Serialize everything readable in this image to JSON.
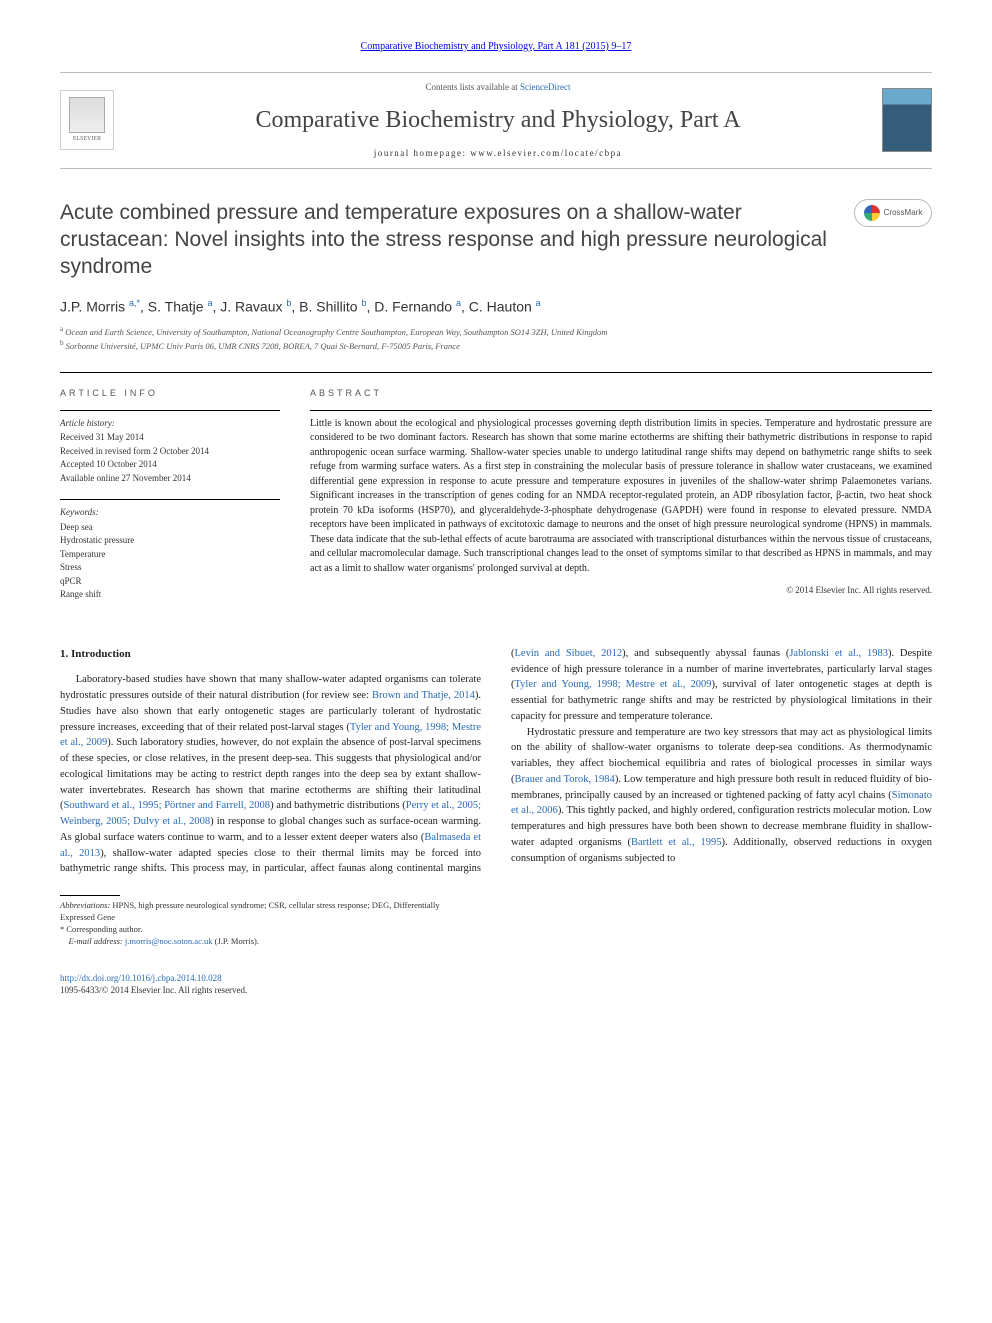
{
  "top_link": {
    "journal": "Comparative Biochemistry and Physiology, Part A",
    "cite": "181 (2015) 9–17"
  },
  "header": {
    "contents_prefix": "Contents lists available at ",
    "contents_link": "ScienceDirect",
    "journal_name": "Comparative Biochemistry and Physiology, Part A",
    "homepage_prefix": "journal homepage: ",
    "homepage_url": "www.elsevier.com/locate/cbpa",
    "publisher": "ELSEVIER"
  },
  "article": {
    "title": "Acute combined pressure and temperature exposures on a shallow-water crustacean: Novel insights into the stress response and high pressure neurological syndrome",
    "crossmark_label": "CrossMark",
    "authors_html": "J.P. Morris <sup>a,*</sup>, S. Thatje <sup>a</sup>, J. Ravaux <sup>b</sup>, B. Shillito <sup>b</sup>, D. Fernando <sup>a</sup>, C. Hauton <sup>a</sup>",
    "affiliations": [
      {
        "sup": "a",
        "text": "Ocean and Earth Science, University of Southampton, National Oceanography Centre Southampton, European Way, Southampton SO14 3ZH, United Kingdom"
      },
      {
        "sup": "b",
        "text": "Sorbonne Université, UPMC Univ Paris 06, UMR CNRS 7208, BOREA, 7 Quai St-Bernard, F-75005 Paris, France"
      }
    ]
  },
  "info": {
    "heading": "article info",
    "history_label": "Article history:",
    "history": [
      "Received 31 May 2014",
      "Received in revised form 2 October 2014",
      "Accepted 10 October 2014",
      "Available online 27 November 2014"
    ],
    "keywords_label": "Keywords:",
    "keywords": [
      "Deep sea",
      "Hydrostatic pressure",
      "Temperature",
      "Stress",
      "qPCR",
      "Range shift"
    ]
  },
  "abstract": {
    "heading": "abstract",
    "text": "Little is known about the ecological and physiological processes governing depth distribution limits in species. Temperature and hydrostatic pressure are considered to be two dominant factors. Research has shown that some marine ectotherms are shifting their bathymetric distributions in response to rapid anthropogenic ocean surface warming. Shallow-water species unable to undergo latitudinal range shifts may depend on bathymetric range shifts to seek refuge from warming surface waters. As a first step in constraining the molecular basis of pressure tolerance in shallow water crustaceans, we examined differential gene expression in response to acute pressure and temperature exposures in juveniles of the shallow-water shrimp Palaemonetes varians. Significant increases in the transcription of genes coding for an NMDA receptor-regulated protein, an ADP ribosylation factor, β-actin, two heat shock protein 70 kDa isoforms (HSP70), and glyceraldehyde-3-phosphate dehydrogenase (GAPDH) were found in response to elevated pressure. NMDA receptors have been implicated in pathways of excitotoxic damage to neurons and the onset of high pressure neurological syndrome (HPNS) in mammals. These data indicate that the sub-lethal effects of acute barotrauma are associated with transcriptional disturbances within the nervous tissue of crustaceans, and cellular macromolecular damage. Such transcriptional changes lead to the onset of symptoms similar to that described as HPNS in mammals, and may act as a limit to shallow water organisms' prolonged survival at depth.",
    "copyright": "© 2014 Elsevier Inc. All rights reserved."
  },
  "body": {
    "section_heading": "1. Introduction",
    "paragraphs_html": [
      "Laboratory-based studies have shown that many shallow-water adapted organisms can tolerate hydrostatic pressures outside of their natural distribution (for review see: <a href='#'>Brown and Thatje, 2014</a>). Studies have also shown that early ontogenetic stages are particularly tolerant of hydrostatic pressure increases, exceeding that of their related post-larval stages (<a href='#'>Tyler and Young, 1998; Mestre et al., 2009</a>). Such laboratory studies, however, do not explain the absence of post-larval specimens of these species, or close relatives, in the present deep-sea. This suggests that physiological and/or ecological limitations may be acting to restrict depth ranges into the deep sea by extant shallow-water invertebrates. Research has shown that marine ectotherms are shifting their latitudinal (<a href='#'>Southward et al., 1995; Pörtner and Farrell, 2008</a>) and bathymetric distributions (<a href='#'>Perry et al., 2005; Weinberg, 2005; Dulvy et al., 2008</a>) in response to global changes such as surface-ocean warming. As global surface waters continue to warm, and to a lesser extent deeper waters also (<a href='#'>Balmaseda et al., 2013</a>), shallow-water adapted species close to their thermal limits may be forced into bathymetric range shifts. This process may, in particular, affect faunas along continental margins (<a href='#'>Levin and Sibuet, 2012</a>), and subsequently abyssal faunas (<a href='#'>Jablonski et al., 1983</a>). Despite evidence of high pressure tolerance in a number of marine invertebrates, particularly larval stages (<a href='#'>Tyler and Young, 1998; Mestre et al., 2009</a>), survival of later ontogenetic stages at depth is essential for bathymetric range shifts and may be restricted by physiological limitations in their capacity for pressure and temperature tolerance.",
      "Hydrostatic pressure and temperature are two key stressors that may act as physiological limits on the ability of shallow-water organisms to tolerate deep-sea conditions. As thermodynamic variables, they affect biochemical equilibria and rates of biological processes in similar ways (<a href='#'>Brauer and Torok, 1984</a>). Low temperature and high pressure both result in reduced fluidity of bio-membranes, principally caused by an increased or tightened packing of fatty acyl chains (<a href='#'>Simonato et al., 2006</a>). This tightly packed, and highly ordered, configuration restricts molecular motion. Low temperatures and high pressures have both been shown to decrease membrane fluidity in shallow-water adapted organisms (<a href='#'>Bartlett et al., 1995</a>). Additionally, observed reductions in oxygen consumption of organisms subjected to"
    ]
  },
  "footnotes": {
    "abbrev_label": "Abbreviations:",
    "abbrev_text": " HPNS, high pressure neurological syndrome; CSR, cellular stress response; DEG, Differentially Expressed Gene",
    "corresponding_label": "* Corresponding author.",
    "email_label": "E-mail address: ",
    "email": "j.morris@noc.soton.ac.uk",
    "email_suffix": " (J.P. Morris)."
  },
  "footer": {
    "doi": "http://dx.doi.org/10.1016/j.cbpa.2014.10.028",
    "issn_copyright": "1095-6433/© 2014 Elsevier Inc. All rights reserved."
  },
  "colors": {
    "link": "#2a6bb5",
    "text": "#222222",
    "heading": "#444444",
    "rule": "#000000"
  }
}
